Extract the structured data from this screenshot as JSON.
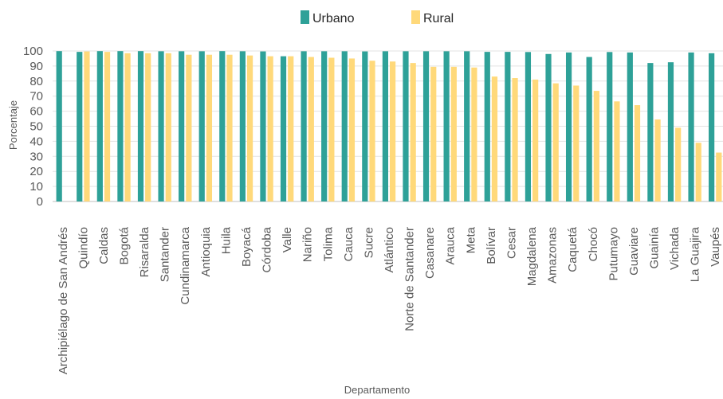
{
  "chart_data": {
    "type": "bar",
    "xlabel": "Departamento",
    "ylabel": "Porcentaje",
    "ylim": [
      0,
      100
    ],
    "yticks": [
      0,
      10,
      20,
      30,
      40,
      50,
      60,
      70,
      80,
      90,
      100
    ],
    "grid": true,
    "legend_position": "top-center",
    "categories": [
      "Archipiélago de San Andrés",
      "Quindío",
      "Caldas",
      "Bogotá",
      "Risaralda",
      "Santander",
      "Cundinamarca",
      "Antioquia",
      "Huila",
      "Boyacá",
      "Córdoba",
      "Valle",
      "Nariño",
      "Tolima",
      "Cauca",
      "Sucre",
      "Atlántico",
      "Norte de Santander",
      "Casanare",
      "Arauca",
      "Meta",
      "Bolívar",
      "Cesar",
      "Magdalena",
      "Amazonas",
      "Caquetá",
      "Chocó",
      "Putumayo",
      "Guaviare",
      "Guainía",
      "Vichada",
      "La Guajira",
      "Vaupés"
    ],
    "series": [
      {
        "name": "Urbano",
        "color": "#2ea198",
        "values": [
          99.9,
          99.4,
          99.9,
          99.9,
          99.9,
          99.8,
          99.8,
          99.8,
          99.9,
          99.8,
          99.7,
          96.5,
          99.8,
          99.8,
          99.8,
          99.7,
          99.8,
          99.8,
          99.8,
          99.8,
          99.8,
          99.4,
          99.4,
          99.3,
          98.0,
          99.0,
          96.0,
          99.3,
          99.0,
          92.0,
          92.5,
          99.0,
          98.5
        ]
      },
      {
        "name": "Rural",
        "color": "#ffd97a",
        "values": [
          null,
          99.7,
          99.4,
          98.5,
          98.5,
          98.5,
          97.5,
          97.5,
          97.5,
          97.0,
          96.5,
          96.5,
          96.0,
          95.5,
          95.0,
          93.5,
          93.0,
          92.0,
          89.5,
          89.5,
          89.0,
          83.0,
          82.0,
          81.0,
          78.5,
          77.0,
          73.5,
          66.5,
          64.0,
          54.5,
          49.0,
          39.0,
          32.5
        ]
      }
    ]
  }
}
